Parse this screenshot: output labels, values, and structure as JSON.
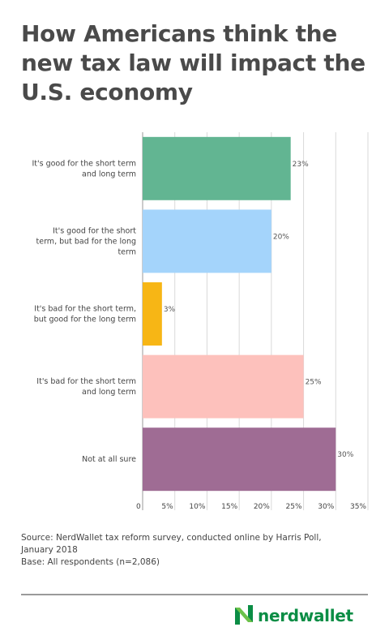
{
  "title": "How Americans think the new tax law will impact the U.S. economy",
  "chart_data": {
    "type": "bar",
    "orientation": "horizontal",
    "categories": [
      [
        "It's good for the short term",
        "and long term"
      ],
      [
        "It's good for the short",
        "term, but bad for the long",
        "term"
      ],
      [
        "It's bad for the short term,",
        "but good for the long term"
      ],
      [
        "It's bad for the short term",
        "and long term"
      ],
      [
        "Not at all sure"
      ]
    ],
    "values": [
      23,
      20,
      3,
      25,
      30
    ],
    "value_labels": [
      "23%",
      "20%",
      "3%",
      "25%",
      "30%"
    ],
    "colors": [
      "#62b592",
      "#a4d4fb",
      "#f7b615",
      "#fdc1bc",
      "#9f6c94"
    ],
    "xlim": [
      0,
      35
    ],
    "ticks": [
      0,
      5,
      10,
      15,
      20,
      25,
      30,
      35
    ],
    "tick_labels": [
      "0",
      "5%",
      "10%",
      "15%",
      "20%",
      "25%",
      "30%",
      "35%"
    ],
    "grid": true
  },
  "source": {
    "line1": "Source: NerdWallet tax reform survey, conducted online by Harris Poll,",
    "line2": "January 2018",
    "line3": "Base: All respondents (n=2,086)"
  },
  "brand": {
    "name": "nerdwallet",
    "color": "#0b8d45",
    "icon": "nerdwallet-logo-icon"
  }
}
